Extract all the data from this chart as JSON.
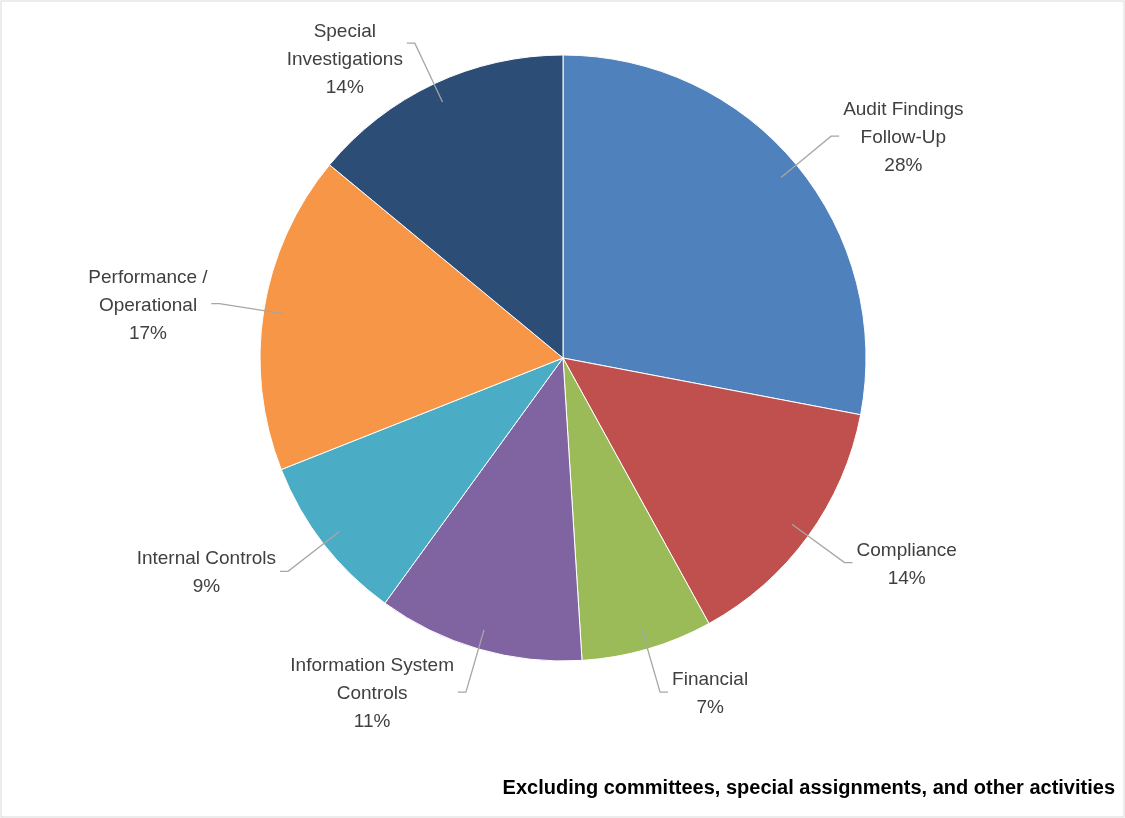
{
  "chart_data": {
    "type": "pie",
    "categories": [
      "Audit Findings Follow-Up",
      "Compliance",
      "Financial",
      "Information System Controls",
      "Internal Controls",
      "Performance / Operational",
      "Special Investigations"
    ],
    "values": [
      28,
      14,
      7,
      11,
      9,
      17,
      14
    ],
    "value_labels": [
      "28%",
      "14%",
      "7%",
      "11%",
      "9%",
      "17%",
      "14%"
    ],
    "colors": [
      "#4f81bd",
      "#c0504d",
      "#9bbb59",
      "#8064a2",
      "#4bacc6",
      "#f79646",
      "#2c4d75"
    ],
    "annotations": [
      "Excluding committees, special assignments, and other activities"
    ]
  }
}
